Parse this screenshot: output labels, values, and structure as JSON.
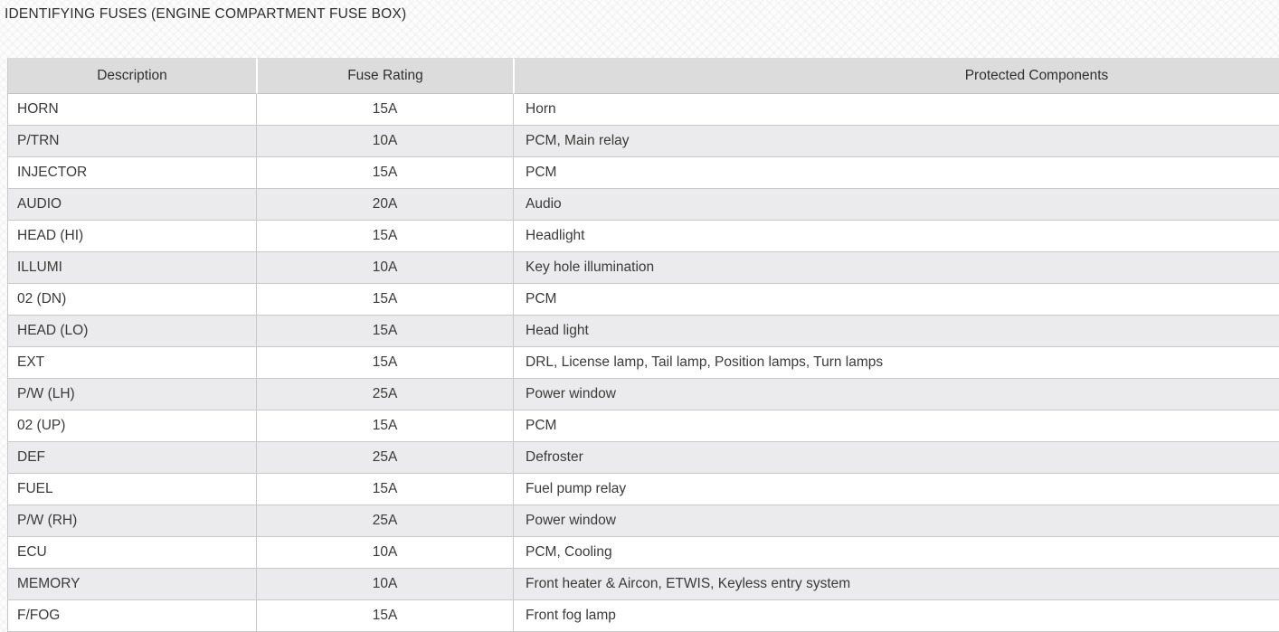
{
  "page": {
    "title": "IDENTIFYING FUSES (ENGINE COMPARTMENT FUSE BOX)"
  },
  "colors": {
    "header_bg": "#dcdcdd",
    "row_alt_bg": "#ebebed",
    "border": "#c9c9cb",
    "text": "#3a3a3a"
  },
  "table": {
    "headers": [
      "Description",
      "Fuse Rating",
      "Protected Components"
    ],
    "rows": [
      {
        "description": "HORN",
        "rating": "15A",
        "components": "Horn"
      },
      {
        "description": "P/TRN",
        "rating": "10A",
        "components": "PCM, Main relay"
      },
      {
        "description": "INJECTOR",
        "rating": "15A",
        "components": "PCM"
      },
      {
        "description": "AUDIO",
        "rating": "20A",
        "components": "Audio"
      },
      {
        "description": "HEAD (HI)",
        "rating": "15A",
        "components": "Headlight"
      },
      {
        "description": "ILLUMI",
        "rating": "10A",
        "components": "Key hole illumination"
      },
      {
        "description": "02 (DN)",
        "rating": "15A",
        "components": "PCM"
      },
      {
        "description": "HEAD (LO)",
        "rating": "15A",
        "components": "Head light"
      },
      {
        "description": "EXT",
        "rating": "15A",
        "components": "DRL, License lamp, Tail lamp, Position lamps, Turn lamps"
      },
      {
        "description": "P/W (LH)",
        "rating": "25A",
        "components": "Power window"
      },
      {
        "description": "02 (UP)",
        "rating": "15A",
        "components": "PCM"
      },
      {
        "description": "DEF",
        "rating": "25A",
        "components": "Defroster"
      },
      {
        "description": "FUEL",
        "rating": "15A",
        "components": "Fuel pump relay"
      },
      {
        "description": "P/W (RH)",
        "rating": "25A",
        "components": "Power window"
      },
      {
        "description": "ECU",
        "rating": "10A",
        "components": "PCM, Cooling"
      },
      {
        "description": "MEMORY",
        "rating": "10A",
        "components": "Front heater & Aircon, ETWIS, Keyless entry system"
      },
      {
        "description": "F/FOG",
        "rating": "15A",
        "components": "Front fog lamp"
      }
    ]
  }
}
